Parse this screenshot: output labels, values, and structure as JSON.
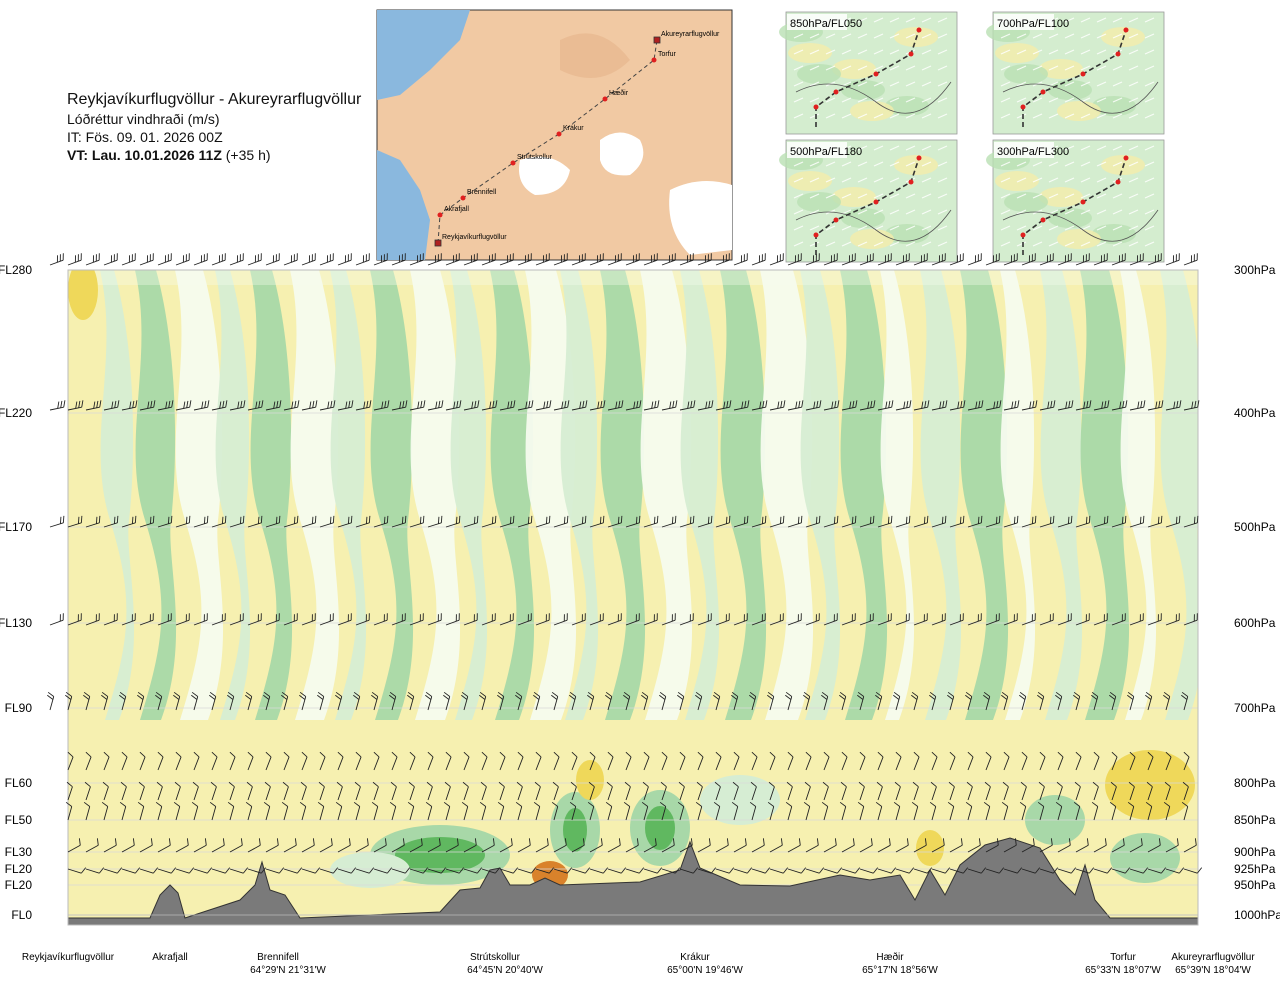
{
  "header": {
    "route": "Reykjavíkurflugvöllur - Akureyrarflugvöllur",
    "variable": "Lóðréttur vindhraði (m/s)",
    "issue_time": "IT: Fös. 09. 01. 2026 00Z",
    "valid_label": "VT: Lau. 10.01.2026 11Z",
    "valid_offset": "(+35 h)"
  },
  "insets": [
    {
      "label": "850hPa/FL050"
    },
    {
      "label": "700hPa/FL100"
    },
    {
      "label": "500hPa/FL180"
    },
    {
      "label": "300hPa/FL300"
    }
  ],
  "map_labels": [
    "Akureyrarflugvöllur",
    "Torfur",
    "Hæðir",
    "Krákur",
    "Strútskollur",
    "Brennifell",
    "Akrafjall",
    "Reykjavíkurflugvöllur"
  ],
  "chart_data": {
    "type": "heatmap",
    "title": "Reykjavíkurflugvöllur - Akureyrarflugvöllur",
    "variable": "Lóðréttur vindhraði (m/s)",
    "left_axis_flight_levels": [
      "FL280",
      "FL220",
      "FL170",
      "FL130",
      "FL90",
      "FL60",
      "FL50",
      "FL30",
      "FL20",
      "FL20",
      "FL0"
    ],
    "right_axis_pressure": [
      "300hPa",
      "400hPa",
      "500hPa",
      "600hPa",
      "700hPa",
      "800hPa",
      "850hPa",
      "900hPa",
      "925hPa",
      "950hPa",
      "1000hPa"
    ],
    "pressure_values_hPa": [
      300,
      400,
      500,
      600,
      700,
      800,
      850,
      900,
      925,
      950,
      1000
    ],
    "waypoints": [
      {
        "name": "Reykjavíkurflugvöllur",
        "coord": ""
      },
      {
        "name": "Akrafjall",
        "coord": ""
      },
      {
        "name": "Brennifell",
        "coord": "64°29'N 21°31'W"
      },
      {
        "name": "Strútskollur",
        "coord": "64°45'N 20°40'W"
      },
      {
        "name": "Krákur",
        "coord": "65°00'N 19°46'W"
      },
      {
        "name": "Hæðir",
        "coord": "65°17'N 18°56'W"
      },
      {
        "name": "Torfur",
        "coord": "65°33'N 18°07'W"
      },
      {
        "name": "Akureyrarflugvöllur",
        "coord": "65°39'N 18°04'W"
      }
    ],
    "colors": {
      "downdraft_strong": "#60b860",
      "downdraft": "#a8d8a8",
      "downdraft_weak": "#d6edd3",
      "neutral": "#f6fbee",
      "updraft_weak": "#f7efa8",
      "updraft": "#efd85a",
      "updraft_strong": "#d9822b",
      "terrain": "#7a7a7a"
    },
    "grid": true,
    "legend": "none"
  }
}
